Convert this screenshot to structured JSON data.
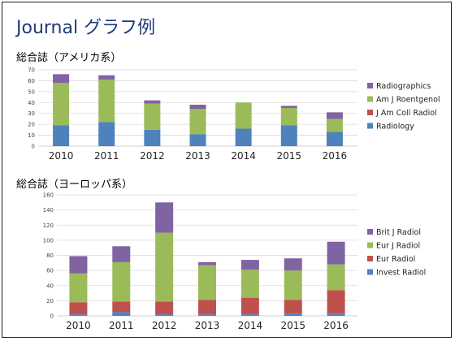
{
  "slide": {
    "title": "Journal グラフ例"
  },
  "colors": {
    "purple": "#8064a2",
    "green": "#9bbb59",
    "red": "#c0504d",
    "blue": "#4f81bd",
    "grid": "#d9d9d9",
    "axis": "#bfbfbf"
  },
  "chart_data": [
    {
      "type": "bar",
      "stacked": true,
      "title": "総合誌（アメリカ系）",
      "categories": [
        "2010",
        "2011",
        "2012",
        "2013",
        "2014",
        "2015",
        "2016"
      ],
      "ylim": [
        0,
        70
      ],
      "yticks": [
        0,
        10,
        20,
        30,
        40,
        50,
        60,
        70
      ],
      "grid": true,
      "legend": "right",
      "series": [
        {
          "name": "Radiology",
          "color": "#4f81bd",
          "values": [
            19,
            22,
            15,
            11,
            16,
            19,
            13
          ]
        },
        {
          "name": "J Am Coll Radiol",
          "color": "#c0504d",
          "values": [
            0,
            0,
            0,
            0,
            0,
            0,
            0
          ]
        },
        {
          "name": "Am J Roentgenol",
          "color": "#9bbb59",
          "values": [
            39,
            39,
            24,
            23,
            24,
            16,
            12
          ]
        },
        {
          "name": "Radiographics",
          "color": "#8064a2",
          "values": [
            8,
            4,
            3,
            4,
            0,
            2,
            6
          ]
        }
      ]
    },
    {
      "type": "bar",
      "stacked": true,
      "title": "総合誌（ヨーロッパ系）",
      "categories": [
        "2010",
        "2011",
        "2012",
        "2013",
        "2014",
        "2015",
        "2016"
      ],
      "ylim": [
        0,
        160
      ],
      "yticks": [
        0,
        20,
        40,
        60,
        80,
        100,
        120,
        140,
        160
      ],
      "grid": true,
      "legend": "right",
      "series": [
        {
          "name": "Invest Radiol",
          "color": "#4f81bd",
          "values": [
            2,
            5,
            2,
            2,
            2,
            3,
            3
          ]
        },
        {
          "name": "Eur Radiol",
          "color": "#c0504d",
          "values": [
            16,
            14,
            17,
            19,
            22,
            18,
            31
          ]
        },
        {
          "name": "Eur J Radiol",
          "color": "#9bbb59",
          "values": [
            38,
            52,
            91,
            46,
            37,
            39,
            34
          ]
        },
        {
          "name": "Brit J Radiol",
          "color": "#8064a2",
          "values": [
            23,
            21,
            40,
            4,
            13,
            16,
            30
          ]
        }
      ]
    }
  ]
}
